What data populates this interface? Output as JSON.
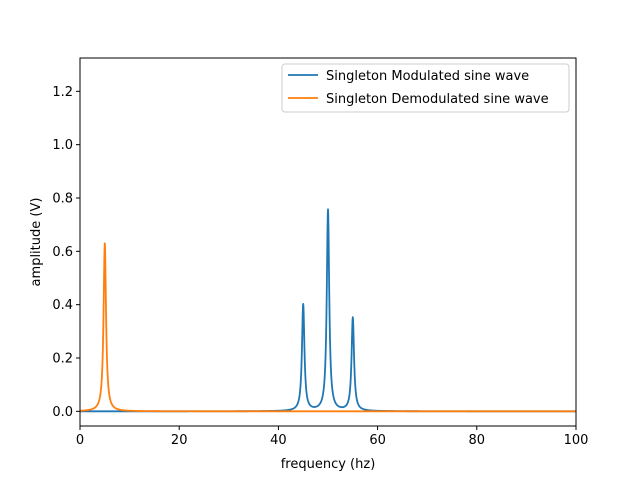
{
  "chart_data": {
    "type": "line",
    "title": "",
    "xlabel": "frequency (hz)",
    "ylabel": "amplitude (V)",
    "xlim": [
      0,
      100
    ],
    "ylim": [
      -0.055,
      1.325
    ],
    "x_ticks": [
      "0",
      "20",
      "40",
      "60",
      "80",
      "100"
    ],
    "y_ticks": [
      "0.0",
      "0.2",
      "0.4",
      "0.6",
      "0.8",
      "1.0",
      "1.2"
    ],
    "grid": false,
    "legend_position": "top-right",
    "series": [
      {
        "name": "Singleton Modulated sine wave",
        "color": "#1f77b4",
        "peaks": [
          {
            "x": 45,
            "y": 0.4
          },
          {
            "x": 50,
            "y": 0.755
          },
          {
            "x": 55,
            "y": 0.35
          }
        ]
      },
      {
        "name": "Singleton Demodulated sine wave",
        "color": "#ff7f0e",
        "peaks": [
          {
            "x": 5,
            "y": 0.63
          }
        ]
      }
    ]
  }
}
